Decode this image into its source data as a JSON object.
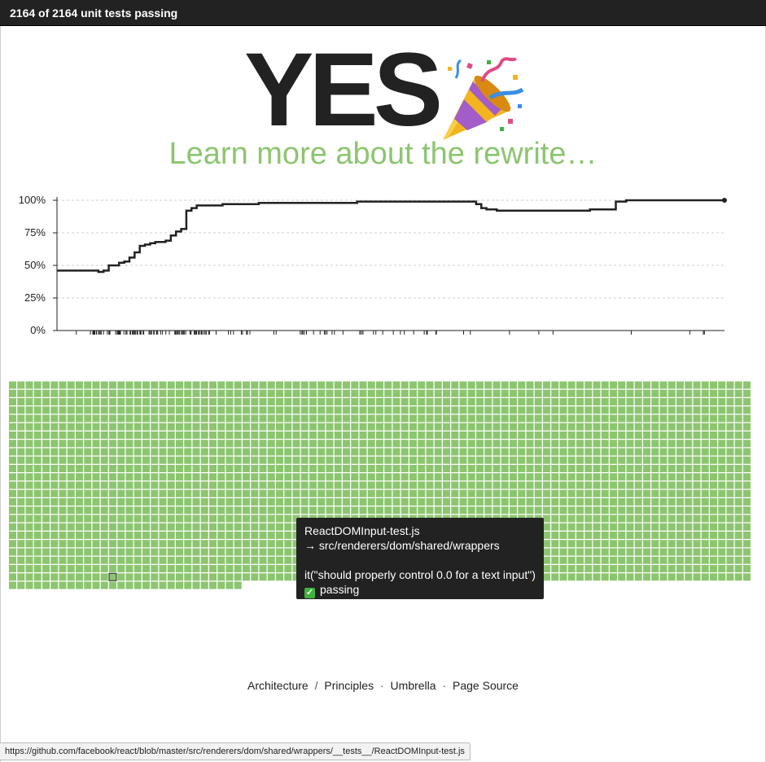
{
  "topbar": {
    "status_text": "2164 of 2164 unit tests passing"
  },
  "hero": {
    "headline": "YES",
    "emoji_icon": "party-popper-icon",
    "learn_link": "Learn more about the rewrite…"
  },
  "colors": {
    "pass_green": "#8cc56f",
    "dark": "#222222",
    "grid_line": "#ffffff"
  },
  "chart_data": {
    "type": "line",
    "title": "",
    "xlabel": "",
    "ylabel": "",
    "ylim": [
      0,
      100
    ],
    "y_ticks": [
      "0%",
      "25%",
      "50%",
      "75%",
      "100%"
    ],
    "grid": true,
    "x_ticks_labeled": false,
    "series": [
      {
        "values": [
          46,
          46,
          46,
          46,
          46,
          46,
          46,
          46,
          45,
          46,
          50,
          50,
          52,
          53,
          56,
          60,
          65,
          66,
          67,
          68,
          68,
          69,
          73,
          76,
          78,
          92,
          94,
          96,
          96,
          96,
          96,
          96,
          97,
          97,
          97,
          97,
          97,
          97,
          97,
          98,
          98,
          98,
          98,
          98,
          98,
          98,
          98,
          98,
          98,
          98,
          98,
          98,
          98,
          98,
          98,
          98,
          98,
          98,
          99,
          99,
          99,
          99,
          99,
          99,
          99,
          99,
          99,
          99,
          99,
          99,
          99,
          99,
          99,
          99,
          99,
          99,
          99,
          99,
          99,
          99,
          99,
          97,
          94,
          93,
          93,
          92,
          92,
          92,
          92,
          92,
          92,
          92,
          92,
          92,
          92,
          92,
          92,
          92,
          92,
          92,
          92,
          92,
          92,
          93,
          93,
          93,
          93,
          93,
          99,
          99,
          100,
          100,
          100,
          100,
          100,
          100,
          100,
          100,
          100,
          100,
          100,
          100,
          100,
          100,
          100,
          100,
          100,
          100,
          100,
          100
        ]
      }
    ]
  },
  "test_grid": {
    "total": 2164,
    "passing": 2164,
    "columns": 89,
    "highlight_index": 2059
  },
  "tooltip": {
    "file": "ReactDOMInput-test.js",
    "path": "→ src/renderers/dom/shared/wrappers",
    "test_name": "it(\"should properly control 0.0 for a text input\")",
    "status_icon": "green-check-icon",
    "status_label": "passing"
  },
  "footer": {
    "architecture": "Architecture",
    "slash": "/",
    "principles": "Principles",
    "dot1": "·",
    "umbrella": "Umbrella",
    "dot2": "·",
    "page_source": "Page Source"
  },
  "statusbar": {
    "url": "https://github.com/facebook/react/blob/master/src/renderers/dom/shared/wrappers/__tests__/ReactDOMInput-test.js"
  }
}
